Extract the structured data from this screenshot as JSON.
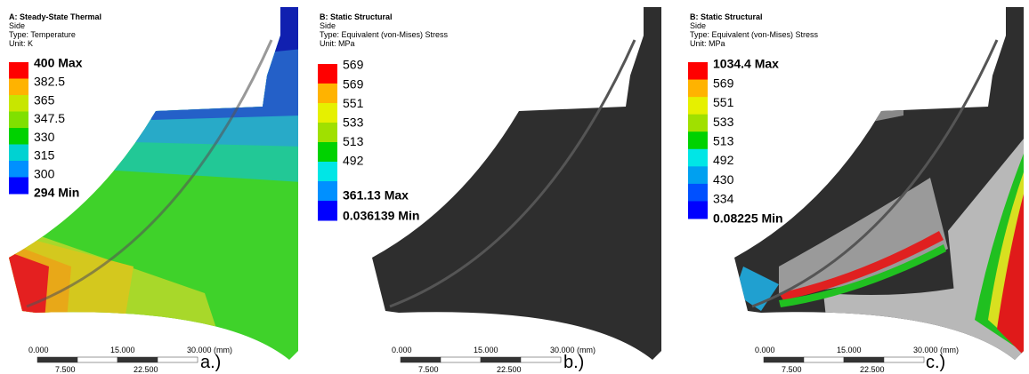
{
  "panels": [
    {
      "header": [
        "A: Steady-State Thermal",
        "Side",
        "Type: Temperature",
        "Unit: K"
      ],
      "legend": [
        "400 Max",
        "382.5",
        "365",
        "347.5",
        "330",
        "315",
        "300",
        "294 Min"
      ],
      "scale": {
        "top": [
          "0.000",
          "15.000",
          "30.000 (mm)"
        ],
        "bottom": [
          "7.500",
          "22.500"
        ]
      },
      "label": "a.)"
    },
    {
      "header": [
        "B: Static Structural",
        "Side",
        "Type: Equivalent (von-Mises) Stress",
        "Unit: MPa"
      ],
      "legend": [
        "569",
        "569",
        "551",
        "533",
        "513",
        "492",
        "361.13 Max",
        "0.036139 Min"
      ],
      "scale": {
        "top": [
          "0.000",
          "15.000",
          "30.000 (mm)"
        ],
        "bottom": [
          "7.500",
          "22.500"
        ]
      },
      "label": "b.)"
    },
    {
      "header": [
        "B: Static Structural",
        "Side",
        "Type: Equivalent (von-Mises) Stress",
        "Unit: MPa"
      ],
      "legend": [
        "1034.4 Max",
        "569",
        "551",
        "533",
        "513",
        "492",
        "430",
        "334",
        "0.08225 Min"
      ],
      "scale": {
        "top": [
          "0.000",
          "15.000",
          "30.000 (mm)"
        ],
        "bottom": [
          "7.500",
          "22.500"
        ]
      },
      "label": "c.)"
    }
  ]
}
